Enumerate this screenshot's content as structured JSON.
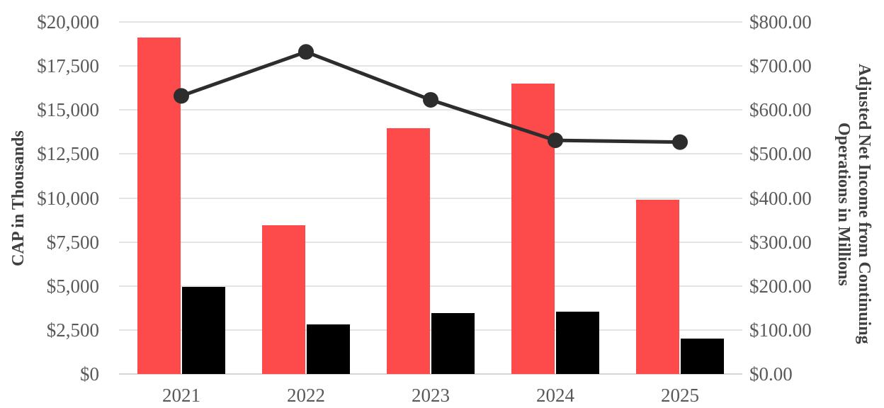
{
  "chart_data": {
    "type": "bar",
    "subtype": "combo-bar-line-dual-axis",
    "title": "",
    "legend": "none",
    "grid": true,
    "categories": [
      "2021",
      "2022",
      "2023",
      "2024",
      "2025"
    ],
    "series": [
      {
        "name": "CAP red bar series",
        "type": "bar",
        "axis": "left",
        "color": "#fd4b4b",
        "values": [
          19100,
          8450,
          13950,
          16500,
          9900
        ]
      },
      {
        "name": "CAP black bar series",
        "type": "bar",
        "axis": "left",
        "color": "#000000",
        "values": [
          4950,
          2800,
          3450,
          3550,
          2000
        ]
      },
      {
        "name": "Adjusted Net Income line series",
        "type": "line",
        "axis": "right",
        "color": "#2d2d2d",
        "values": [
          632,
          732,
          623,
          531,
          527
        ]
      }
    ],
    "left_axis": {
      "title": "CAP in Thousands",
      "min": 0,
      "max": 20000,
      "ticks": [
        "$0",
        "$2,500",
        "$5,000",
        "$7,500",
        "$10,000",
        "$12,500",
        "$15,000",
        "$17,500",
        "$20,000"
      ]
    },
    "right_axis": {
      "title_lines": [
        "Adjusted Net Income from Continuing",
        "Operations in Millions"
      ],
      "min": 0,
      "max": 800,
      "ticks": [
        "$0.00",
        "$100.00",
        "$200.00",
        "$300.00",
        "$400.00",
        "$500.00",
        "$600.00",
        "$700.00",
        "$800.00"
      ]
    },
    "colors": {
      "gridline": "#e4e4e4",
      "axis_line": "#d6d6d6",
      "tick_label": "#595959",
      "axis_title": "#3f3f3f"
    }
  }
}
